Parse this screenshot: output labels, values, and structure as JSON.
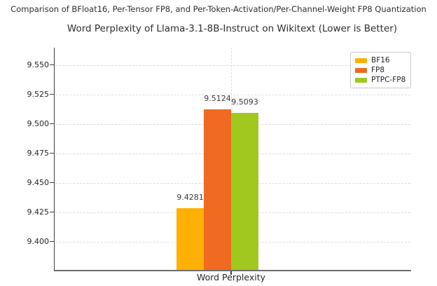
{
  "suptitle": "Comparison of BFloat16, Per-Tensor FP8, and Per-Token-Activation/Per-Channel-Weight FP8 Quantization",
  "chart_data": {
    "type": "bar",
    "title": "Word Perplexity of Llama-3.1-8B-Instruct on Wikitext (Lower is Better)",
    "xlabel": "Word Perplexity",
    "ylabel": "",
    "categories": [
      "Word Perplexity"
    ],
    "series": [
      {
        "name": "BF16",
        "values": [
          9.4281
        ],
        "data_label": "9.4281",
        "color": "#FFB005"
      },
      {
        "name": "FP8",
        "values": [
          9.5124
        ],
        "data_label": "9.5124",
        "color": "#F06A21"
      },
      {
        "name": "PTPC-FP8",
        "values": [
          9.5093
        ],
        "data_label": "9.5093",
        "color": "#A0C81E"
      }
    ],
    "ylim": [
      9.376,
      9.5647
    ],
    "yticks": [
      9.4,
      9.425,
      9.45,
      9.475,
      9.5,
      9.525,
      9.55
    ],
    "ytick_labels": [
      "9.400",
      "9.425",
      "9.450",
      "9.475",
      "9.500",
      "9.525",
      "9.550"
    ],
    "grid": true,
    "legend": {
      "position": "upper right",
      "entries": [
        "BF16",
        "FP8",
        "PTPC-FP8"
      ]
    }
  }
}
